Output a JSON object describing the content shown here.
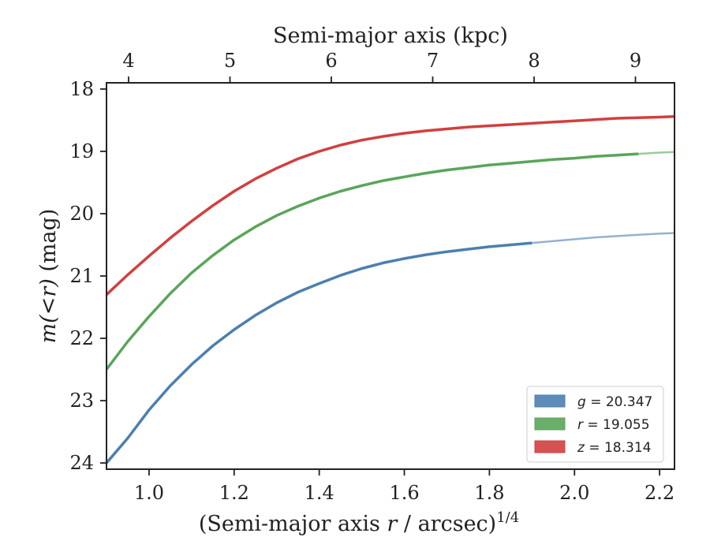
{
  "chart_data": {
    "type": "line",
    "title": "",
    "top_axis": {
      "label": "Semi-major axis (kpc)",
      "tick_values": [
        4,
        5,
        6,
        7,
        8,
        9
      ],
      "tick_labels": [
        "4",
        "5",
        "6",
        "7",
        "8",
        "9"
      ]
    },
    "x_axis": {
      "label_prefix": "(Semi-major axis ",
      "label_var": "r",
      "label_suffix": " / arcsec)",
      "label_sup": "1/4",
      "range": [
        0.9,
        2.235
      ],
      "ticks": [
        1.0,
        1.2,
        1.4,
        1.6,
        1.8,
        2.0,
        2.2
      ],
      "tick_labels": [
        "1.0",
        "1.2",
        "1.4",
        "1.6",
        "1.8",
        "2.0",
        "2.2"
      ]
    },
    "y_axis": {
      "label_var": "m(<r)",
      "label_unit": " (mag)",
      "range": [
        24.1,
        17.9
      ],
      "inverted": true,
      "ticks": [
        18,
        19,
        20,
        21,
        22,
        23,
        24
      ],
      "tick_labels": [
        "18",
        "19",
        "20",
        "21",
        "22",
        "23",
        "24"
      ]
    },
    "grid": false,
    "legend_position": "bottom-right",
    "series": [
      {
        "name": "g",
        "legend_var": "g",
        "legend_value": " = 20.347",
        "color": "#4c7fb0",
        "x": [
          0.9,
          0.95,
          1.0,
          1.05,
          1.1,
          1.15,
          1.2,
          1.25,
          1.3,
          1.35,
          1.4,
          1.45,
          1.5,
          1.55,
          1.6,
          1.65,
          1.7,
          1.75,
          1.8,
          1.85,
          1.9,
          1.95,
          2.0,
          2.05,
          2.1,
          2.15,
          2.2,
          2.235
        ],
        "y": [
          24.0,
          23.6,
          23.15,
          22.76,
          22.42,
          22.12,
          21.86,
          21.63,
          21.43,
          21.26,
          21.12,
          20.99,
          20.88,
          20.79,
          20.72,
          20.66,
          20.61,
          20.57,
          20.53,
          20.5,
          20.47,
          20.44,
          20.41,
          20.38,
          20.36,
          20.34,
          20.32,
          20.31
        ],
        "solid_until": 1.9
      },
      {
        "name": "r",
        "legend_var": "r",
        "legend_value": " = 19.055",
        "color": "#5aa55a",
        "x": [
          0.9,
          0.95,
          1.0,
          1.05,
          1.1,
          1.15,
          1.2,
          1.25,
          1.3,
          1.35,
          1.4,
          1.45,
          1.5,
          1.55,
          1.6,
          1.65,
          1.7,
          1.75,
          1.8,
          1.85,
          1.9,
          1.95,
          2.0,
          2.05,
          2.1,
          2.15,
          2.2,
          2.235
        ],
        "y": [
          22.5,
          22.05,
          21.65,
          21.28,
          20.95,
          20.67,
          20.42,
          20.21,
          20.03,
          19.88,
          19.75,
          19.64,
          19.55,
          19.47,
          19.41,
          19.35,
          19.3,
          19.26,
          19.22,
          19.19,
          19.16,
          19.13,
          19.11,
          19.08,
          19.06,
          19.04,
          19.02,
          19.01
        ],
        "solid_until": 2.16
      },
      {
        "name": "z",
        "legend_var": "z",
        "legend_value": " = 18.314",
        "color": "#d23f3f",
        "x": [
          0.9,
          0.95,
          1.0,
          1.05,
          1.1,
          1.15,
          1.2,
          1.25,
          1.3,
          1.35,
          1.4,
          1.45,
          1.5,
          1.55,
          1.6,
          1.65,
          1.7,
          1.75,
          1.8,
          1.85,
          1.9,
          1.95,
          2.0,
          2.05,
          2.1,
          2.15,
          2.2,
          2.235
        ],
        "y": [
          21.3,
          20.98,
          20.68,
          20.39,
          20.12,
          19.87,
          19.64,
          19.44,
          19.27,
          19.12,
          19.0,
          18.9,
          18.82,
          18.76,
          18.71,
          18.67,
          18.64,
          18.61,
          18.59,
          18.57,
          18.55,
          18.53,
          18.51,
          18.49,
          18.47,
          18.46,
          18.45,
          18.44
        ],
        "solid_until": 2.235
      }
    ]
  }
}
